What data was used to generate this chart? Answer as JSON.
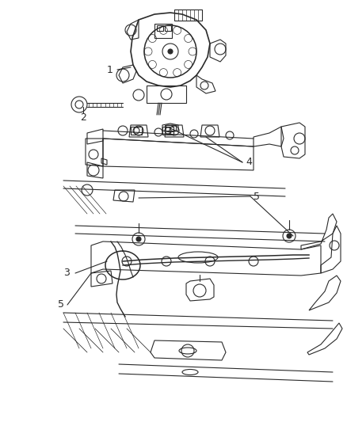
{
  "background_color": "#ffffff",
  "fig_width": 4.38,
  "fig_height": 5.33,
  "dpi": 100,
  "line_color": "#2a2a2a",
  "line_width": 0.8,
  "label_fontsize": 8.5
}
